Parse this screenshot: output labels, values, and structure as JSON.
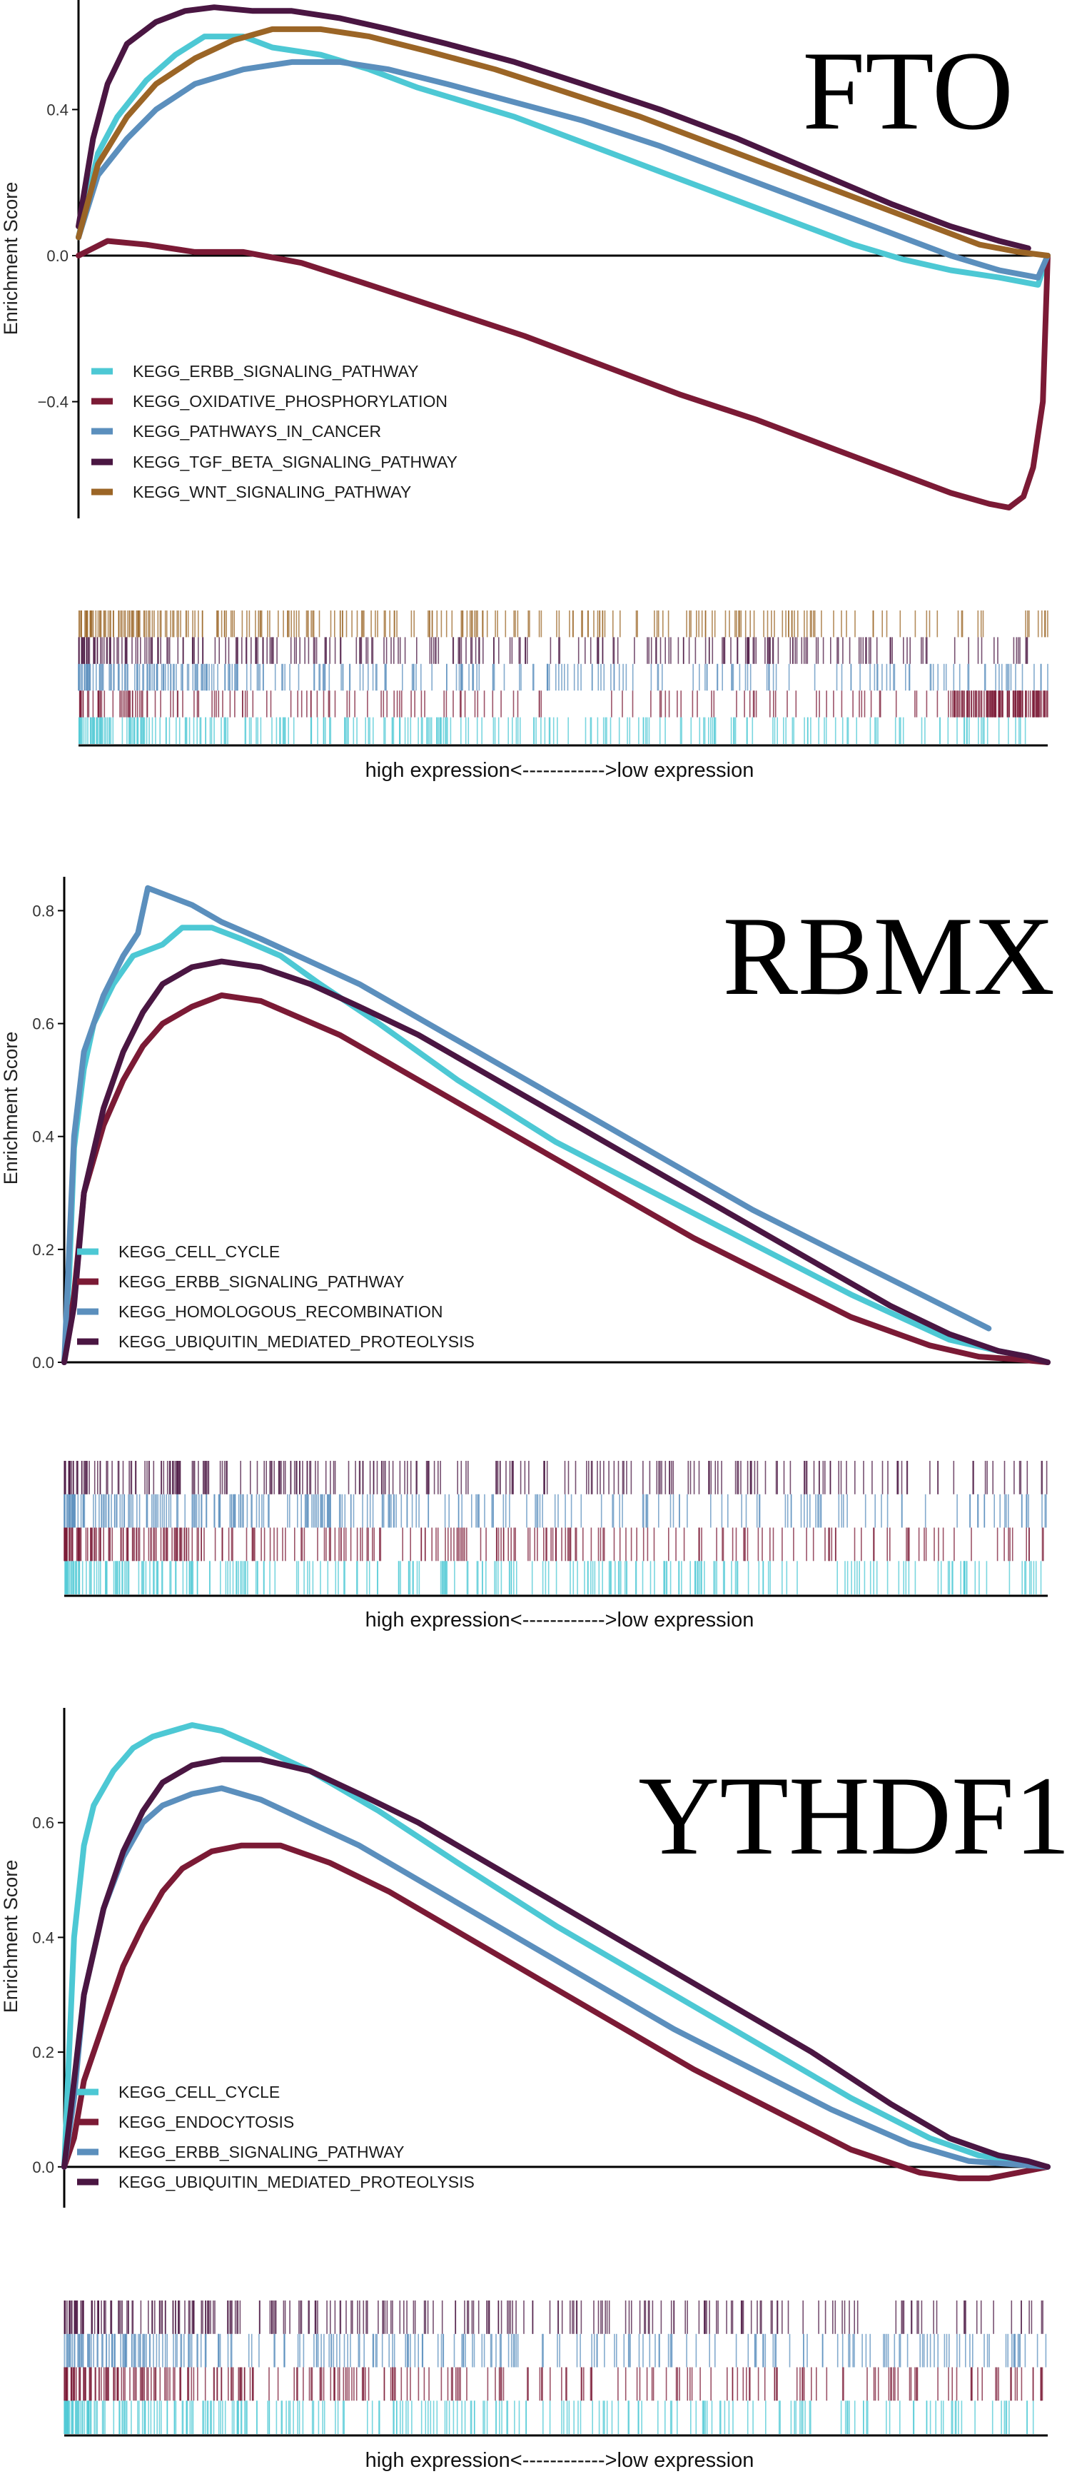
{
  "colors": {
    "cyan": "#4dc8d4",
    "crimson": "#7b1a35",
    "steel": "#5b8fbd",
    "plum": "#4a1642",
    "brown": "#9b6526",
    "axis": "#000000"
  },
  "chart_data": [
    {
      "type": "line",
      "title": "FTO",
      "ylabel": "Enrichment Score",
      "xcaption": "high expression<------------>low expression",
      "ylim": [
        -0.7,
        0.7
      ],
      "yticks": [
        -0.4,
        0.0,
        0.4
      ],
      "ytick_labels": [
        "−0.4",
        "0.0",
        "0.4"
      ],
      "legend": "bottom-left",
      "series": [
        {
          "name": "KEGG_ERBB_SIGNALING_PATHWAY",
          "color": "#4dc8d4",
          "x": [
            0,
            0.02,
            0.04,
            0.07,
            0.1,
            0.13,
            0.17,
            0.2,
            0.25,
            0.3,
            0.35,
            0.4,
            0.45,
            0.5,
            0.55,
            0.6,
            0.65,
            0.7,
            0.75,
            0.8,
            0.85,
            0.9,
            0.95,
            0.99,
            1.0
          ],
          "y": [
            0.05,
            0.28,
            0.38,
            0.48,
            0.55,
            0.6,
            0.6,
            0.57,
            0.55,
            0.51,
            0.46,
            0.42,
            0.38,
            0.33,
            0.28,
            0.23,
            0.18,
            0.13,
            0.08,
            0.03,
            -0.01,
            -0.04,
            -0.06,
            -0.08,
            0.0
          ]
        },
        {
          "name": "KEGG_OXIDATIVE_PHOSPHORYLATION",
          "color": "#7b1a35",
          "x": [
            0,
            0.03,
            0.07,
            0.12,
            0.17,
            0.23,
            0.3,
            0.38,
            0.46,
            0.54,
            0.62,
            0.7,
            0.78,
            0.85,
            0.9,
            0.94,
            0.96,
            0.975,
            0.985,
            0.995,
            1.0
          ],
          "y": [
            0.0,
            0.04,
            0.03,
            0.01,
            0.01,
            -0.02,
            -0.08,
            -0.15,
            -0.22,
            -0.3,
            -0.38,
            -0.45,
            -0.53,
            -0.6,
            -0.65,
            -0.68,
            -0.69,
            -0.66,
            -0.58,
            -0.4,
            0.0
          ]
        },
        {
          "name": "KEGG_PATHWAYS_IN_CANCER",
          "color": "#5b8fbd",
          "x": [
            0,
            0.02,
            0.05,
            0.08,
            0.12,
            0.17,
            0.22,
            0.27,
            0.32,
            0.38,
            0.45,
            0.52,
            0.6,
            0.68,
            0.76,
            0.84,
            0.9,
            0.95,
            0.99,
            1.0
          ],
          "y": [
            0.05,
            0.22,
            0.32,
            0.4,
            0.47,
            0.51,
            0.53,
            0.53,
            0.51,
            0.47,
            0.42,
            0.37,
            0.3,
            0.22,
            0.14,
            0.06,
            0.0,
            -0.04,
            -0.06,
            0.0
          ]
        },
        {
          "name": "KEGG_TGF_BETA_SIGNALING_PATHWAY",
          "color": "#4a1642",
          "x": [
            0,
            0.015,
            0.03,
            0.05,
            0.08,
            0.11,
            0.14,
            0.18,
            0.22,
            0.27,
            0.32,
            0.38,
            0.45,
            0.52,
            0.6,
            0.68,
            0.76,
            0.84,
            0.9,
            0.95,
            0.98
          ],
          "y": [
            0.08,
            0.32,
            0.47,
            0.58,
            0.64,
            0.67,
            0.68,
            0.67,
            0.67,
            0.65,
            0.62,
            0.58,
            0.53,
            0.47,
            0.4,
            0.32,
            0.23,
            0.14,
            0.08,
            0.04,
            0.02
          ]
        },
        {
          "name": "KEGG_WNT_SIGNALING_PATHWAY",
          "color": "#9b6526",
          "x": [
            0,
            0.02,
            0.05,
            0.08,
            0.12,
            0.16,
            0.2,
            0.25,
            0.3,
            0.36,
            0.43,
            0.5,
            0.58,
            0.66,
            0.74,
            0.82,
            0.88,
            0.93,
            0.97,
            1.0
          ],
          "y": [
            0.05,
            0.25,
            0.38,
            0.47,
            0.54,
            0.59,
            0.62,
            0.62,
            0.6,
            0.56,
            0.51,
            0.45,
            0.38,
            0.3,
            0.22,
            0.14,
            0.08,
            0.03,
            0.01,
            0.0
          ]
        }
      ]
    },
    {
      "type": "line",
      "title": "RBMX",
      "ylabel": "Enrichment Score",
      "xcaption": "high expression<------------>low expression",
      "ylim": [
        0.0,
        0.86
      ],
      "yticks": [
        0.0,
        0.2,
        0.4,
        0.6,
        0.8
      ],
      "ytick_labels": [
        "0.0",
        "0.2",
        "0.4",
        "0.6",
        "0.8"
      ],
      "legend": "bottom-left",
      "series": [
        {
          "name": "KEGG_CELL_CYCLE",
          "color": "#4dc8d4",
          "x": [
            0,
            0.005,
            0.01,
            0.02,
            0.03,
            0.05,
            0.07,
            0.1,
            0.12,
            0.15,
            0.18,
            0.22,
            0.26,
            0.32,
            0.4,
            0.5,
            0.6,
            0.7,
            0.8,
            0.9,
            0.95,
            0.98,
            1.0
          ],
          "y": [
            0.0,
            0.15,
            0.38,
            0.52,
            0.6,
            0.67,
            0.72,
            0.74,
            0.77,
            0.77,
            0.75,
            0.72,
            0.67,
            0.6,
            0.5,
            0.39,
            0.3,
            0.21,
            0.12,
            0.04,
            0.02,
            0.01,
            0.0
          ]
        },
        {
          "name": "KEGG_ERBB_SIGNALING_PATHWAY",
          "color": "#7b1a35",
          "x": [
            0,
            0.01,
            0.02,
            0.04,
            0.06,
            0.08,
            0.1,
            0.13,
            0.16,
            0.2,
            0.24,
            0.28,
            0.33,
            0.4,
            0.48,
            0.56,
            0.64,
            0.72,
            0.8,
            0.88,
            0.93,
            0.97,
            1.0
          ],
          "y": [
            0.0,
            0.12,
            0.3,
            0.42,
            0.5,
            0.56,
            0.6,
            0.63,
            0.65,
            0.64,
            0.61,
            0.58,
            0.53,
            0.46,
            0.38,
            0.3,
            0.22,
            0.15,
            0.08,
            0.03,
            0.01,
            0.005,
            0.0
          ]
        },
        {
          "name": "KEGG_HOMOLOGOUS_RECOMBINATION",
          "color": "#5b8fbd",
          "x": [
            0,
            0.005,
            0.01,
            0.02,
            0.04,
            0.06,
            0.075,
            0.085,
            0.1,
            0.13,
            0.16,
            0.2,
            0.25,
            0.3,
            0.38,
            0.46,
            0.54,
            0.62,
            0.7,
            0.78,
            0.86,
            0.94
          ],
          "y": [
            0.0,
            0.2,
            0.4,
            0.55,
            0.65,
            0.72,
            0.76,
            0.84,
            0.83,
            0.81,
            0.78,
            0.75,
            0.71,
            0.67,
            0.59,
            0.51,
            0.43,
            0.35,
            0.27,
            0.2,
            0.13,
            0.06
          ]
        },
        {
          "name": "KEGG_UBIQUITIN_MEDIATED_PROTEOLYSIS",
          "color": "#4a1642",
          "x": [
            0,
            0.01,
            0.02,
            0.04,
            0.06,
            0.08,
            0.1,
            0.13,
            0.16,
            0.2,
            0.25,
            0.3,
            0.36,
            0.44,
            0.52,
            0.6,
            0.68,
            0.76,
            0.84,
            0.9,
            0.95,
            0.98,
            1.0
          ],
          "y": [
            0.0,
            0.1,
            0.3,
            0.45,
            0.55,
            0.62,
            0.67,
            0.7,
            0.71,
            0.7,
            0.67,
            0.63,
            0.58,
            0.5,
            0.42,
            0.34,
            0.26,
            0.18,
            0.1,
            0.05,
            0.02,
            0.01,
            0.0
          ]
        }
      ]
    },
    {
      "type": "line",
      "title": "YTHDF1",
      "ylabel": "Enrichment Score",
      "xcaption": "high expression<------------>low expression",
      "ylim": [
        -0.05,
        0.8
      ],
      "yticks": [
        0.0,
        0.2,
        0.4,
        0.6
      ],
      "ytick_labels": [
        "0.0",
        "0.2",
        "0.4",
        "0.6"
      ],
      "legend": "bottom-left",
      "series": [
        {
          "name": "KEGG_CELL_CYCLE",
          "color": "#4dc8d4",
          "x": [
            0,
            0.005,
            0.01,
            0.02,
            0.03,
            0.05,
            0.07,
            0.09,
            0.11,
            0.13,
            0.16,
            0.2,
            0.25,
            0.32,
            0.4,
            0.5,
            0.6,
            0.7,
            0.8,
            0.88,
            0.93,
            0.97,
            1.0
          ],
          "y": [
            0.0,
            0.2,
            0.4,
            0.56,
            0.63,
            0.69,
            0.73,
            0.75,
            0.76,
            0.77,
            0.76,
            0.73,
            0.69,
            0.62,
            0.53,
            0.42,
            0.32,
            0.22,
            0.12,
            0.05,
            0.02,
            0.01,
            0.0
          ]
        },
        {
          "name": "KEGG_ENDOCYTOSIS",
          "color": "#7b1a35",
          "x": [
            0,
            0.01,
            0.02,
            0.04,
            0.06,
            0.08,
            0.1,
            0.12,
            0.15,
            0.18,
            0.22,
            0.27,
            0.33,
            0.4,
            0.48,
            0.56,
            0.64,
            0.72,
            0.8,
            0.87,
            0.91,
            0.94,
            0.97,
            1.0
          ],
          "y": [
            0.0,
            0.05,
            0.15,
            0.25,
            0.35,
            0.42,
            0.48,
            0.52,
            0.55,
            0.56,
            0.56,
            0.53,
            0.48,
            0.41,
            0.33,
            0.25,
            0.17,
            0.1,
            0.03,
            -0.01,
            -0.02,
            -0.02,
            -0.01,
            0.0
          ]
        },
        {
          "name": "KEGG_ERBB_SIGNALING_PATHWAY",
          "color": "#5b8fbd",
          "x": [
            0,
            0.01,
            0.02,
            0.04,
            0.06,
            0.08,
            0.1,
            0.13,
            0.16,
            0.2,
            0.25,
            0.3,
            0.38,
            0.46,
            0.54,
            0.62,
            0.7,
            0.78,
            0.86,
            0.92,
            0.96,
            1.0
          ],
          "y": [
            0.0,
            0.12,
            0.3,
            0.45,
            0.54,
            0.6,
            0.63,
            0.65,
            0.66,
            0.64,
            0.6,
            0.56,
            0.48,
            0.4,
            0.32,
            0.24,
            0.17,
            0.1,
            0.04,
            0.01,
            0.005,
            0.0
          ]
        },
        {
          "name": "KEGG_UBIQUITIN_MEDIATED_PROTEOLYSIS",
          "color": "#4a1642",
          "x": [
            0,
            0.01,
            0.02,
            0.04,
            0.06,
            0.08,
            0.1,
            0.13,
            0.16,
            0.2,
            0.25,
            0.3,
            0.36,
            0.44,
            0.52,
            0.6,
            0.68,
            0.76,
            0.84,
            0.9,
            0.95,
            0.98,
            1.0
          ],
          "y": [
            0.0,
            0.15,
            0.3,
            0.45,
            0.55,
            0.62,
            0.67,
            0.7,
            0.71,
            0.71,
            0.69,
            0.65,
            0.6,
            0.52,
            0.44,
            0.36,
            0.28,
            0.2,
            0.11,
            0.05,
            0.02,
            0.01,
            0.0
          ]
        }
      ]
    }
  ]
}
